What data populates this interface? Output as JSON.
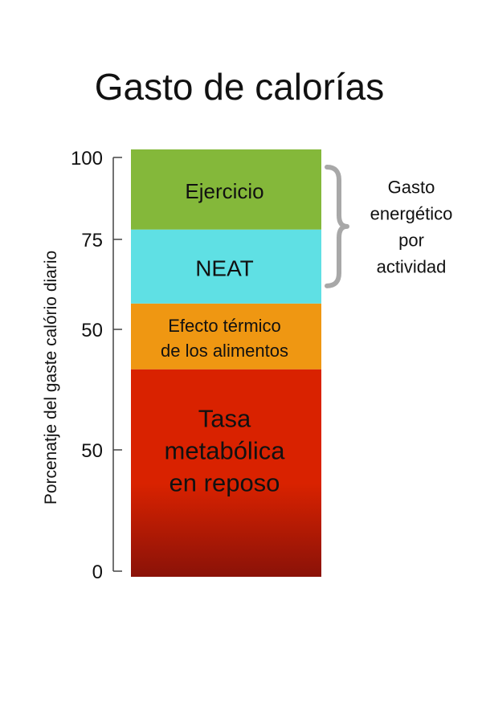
{
  "chart_data": {
    "type": "bar",
    "title": "Gasto de calorías",
    "ylabel": "Porcenatje del gaste calório diario",
    "xlabel": "",
    "ylim": [
      0,
      100
    ],
    "y_tick_labels": [
      "0",
      "50",
      "50",
      "75",
      "100"
    ],
    "segments": [
      {
        "label_lines": [
          "Tasa",
          "metabólica",
          "en reposo"
        ],
        "start": 0,
        "end": 50.5,
        "color": "#d92200"
      },
      {
        "label_lines": [
          "Efecto térmico",
          "de los alimentos"
        ],
        "start": 50.5,
        "end": 66.5,
        "color": "#ef9712"
      },
      {
        "label_lines": [
          "NEAT"
        ],
        "start": 66.5,
        "end": 84.5,
        "color": "#5fe0e4"
      },
      {
        "label_lines": [
          "Ejercicio"
        ],
        "start": 84.5,
        "end": 104,
        "color": "#84b83a"
      }
    ],
    "bracket": {
      "label_lines": [
        "Gasto",
        "energético",
        "por",
        "actividad"
      ],
      "covers": [
        "NEAT",
        "Ejercicio"
      ]
    },
    "colors": {
      "bracket": "#a8a8a8",
      "axis": "#444444",
      "base_dark": "#8a1208"
    }
  }
}
